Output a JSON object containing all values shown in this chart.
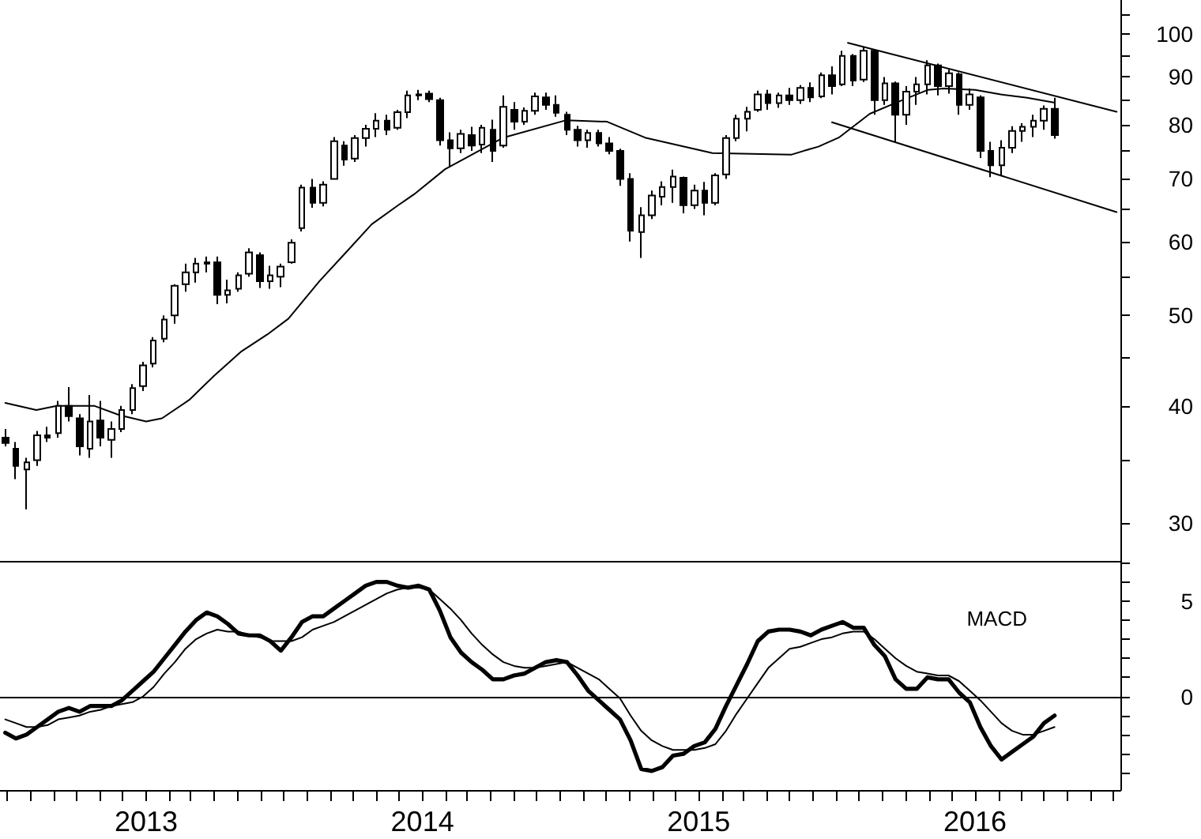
{
  "chart_data": [
    {
      "type": "candlestick",
      "color": "#000000",
      "log": true,
      "tick_labels": "y",
      "xlim": [
        "2012-06-22",
        "2016-07-11"
      ],
      "ylim": [
        27.3,
        108.8
      ],
      "yticks": [
        30,
        {
          "value": 35,
          "label": null
        },
        40,
        {
          "value": 45,
          "label": null
        },
        50,
        {
          "value": 55,
          "label": null
        },
        60,
        {
          "value": 65,
          "label": null
        },
        70,
        {
          "value": 75,
          "label": null
        },
        80,
        {
          "value": 85,
          "label": null
        },
        90,
        {
          "value": 95,
          "label": null
        },
        100,
        {
          "value": 105,
          "label": null
        }
      ],
      "x": [
        "2012-06-29",
        "2012-07-13",
        "2012-07-27",
        "2012-08-10",
        "2012-08-24",
        "2012-09-07",
        "2012-09-21",
        "2012-10-05",
        "2012-10-19",
        "2012-11-02",
        "2012-11-16",
        "2012-11-30",
        "2012-12-14",
        "2012-12-28",
        "2013-01-11",
        "2013-01-25",
        "2013-02-08",
        "2013-02-22",
        "2013-03-08",
        "2013-03-22",
        "2013-04-05",
        "2013-04-19",
        "2013-05-03",
        "2013-05-17",
        "2013-05-31",
        "2013-06-14",
        "2013-06-28",
        "2013-07-12",
        "2013-07-26",
        "2013-08-09",
        "2013-08-23",
        "2013-09-06",
        "2013-09-20",
        "2013-10-04",
        "2013-10-18",
        "2013-11-01",
        "2013-11-15",
        "2013-11-29",
        "2013-12-13",
        "2013-12-27",
        "2014-01-10",
        "2014-01-24",
        "2014-02-07",
        "2014-02-21",
        "2014-03-07",
        "2014-03-21",
        "2014-04-04",
        "2014-04-18",
        "2014-05-02",
        "2014-05-16",
        "2014-05-30",
        "2014-06-13",
        "2014-06-27",
        "2014-07-11",
        "2014-07-25",
        "2014-08-08",
        "2014-08-22",
        "2014-09-05",
        "2014-09-19",
        "2014-10-03",
        "2014-10-17",
        "2014-10-31",
        "2014-11-14",
        "2014-11-28",
        "2014-12-12",
        "2014-12-26",
        "2015-01-09",
        "2015-01-23",
        "2015-02-06",
        "2015-02-20",
        "2015-03-06",
        "2015-03-20",
        "2015-04-03",
        "2015-04-17",
        "2015-05-01",
        "2015-05-15",
        "2015-05-29",
        "2015-06-12",
        "2015-06-26",
        "2015-07-10",
        "2015-07-24",
        "2015-08-07",
        "2015-08-21",
        "2015-09-04",
        "2015-09-18",
        "2015-10-02",
        "2015-10-16",
        "2015-10-30",
        "2015-11-13",
        "2015-11-27",
        "2015-12-11",
        "2015-12-25",
        "2016-01-08",
        "2016-01-22",
        "2016-02-05",
        "2016-02-19",
        "2016-03-04",
        "2016-03-18",
        "2016-04-01",
        "2016-04-15"
      ],
      "ohlc": [
        [
          37.0,
          37.8,
          36.2,
          36.5
        ],
        [
          36.0,
          36.6,
          33.4,
          34.5
        ],
        [
          34.2,
          35.2,
          31.0,
          34.8
        ],
        [
          35.0,
          37.6,
          34.5,
          37.2
        ],
        [
          37.2,
          38.0,
          36.6,
          37.0
        ],
        [
          37.4,
          40.5,
          37.0,
          40.0
        ],
        [
          40.0,
          41.9,
          38.5,
          39.0
        ],
        [
          38.8,
          39.2,
          35.4,
          36.2
        ],
        [
          36.0,
          41.1,
          35.2,
          38.5
        ],
        [
          38.6,
          40.5,
          36.2,
          37.0
        ],
        [
          36.8,
          38.5,
          35.2,
          37.8
        ],
        [
          37.8,
          40.0,
          37.5,
          39.6
        ],
        [
          39.6,
          42.2,
          39.2,
          41.8
        ],
        [
          42.0,
          44.6,
          41.5,
          44.2
        ],
        [
          44.4,
          47.4,
          44.0,
          47.0
        ],
        [
          47.2,
          50.0,
          46.8,
          49.5
        ],
        [
          50.0,
          54.0,
          49.0,
          53.8
        ],
        [
          54.0,
          56.8,
          53.0,
          55.6
        ],
        [
          55.6,
          57.6,
          54.2,
          56.8
        ],
        [
          56.8,
          57.8,
          55.6,
          57.0
        ],
        [
          57.0,
          57.8,
          51.4,
          52.6
        ],
        [
          52.6,
          54.6,
          51.5,
          53.2
        ],
        [
          53.4,
          55.6,
          53.0,
          55.2
        ],
        [
          55.4,
          59.0,
          55.0,
          58.4
        ],
        [
          58.0,
          58.4,
          53.5,
          54.4
        ],
        [
          54.4,
          56.5,
          53.4,
          55.2
        ],
        [
          55.0,
          56.8,
          53.6,
          56.4
        ],
        [
          57.0,
          60.3,
          56.8,
          59.8
        ],
        [
          62.0,
          69.0,
          61.5,
          68.5
        ],
        [
          68.5,
          70.0,
          65.2,
          66.0
        ],
        [
          66.0,
          69.6,
          65.4,
          69.0
        ],
        [
          70.0,
          77.6,
          69.9,
          76.8
        ],
        [
          76.0,
          76.8,
          72.3,
          73.4
        ],
        [
          73.6,
          78.0,
          73.0,
          77.4
        ],
        [
          77.4,
          80.0,
          75.8,
          79.2
        ],
        [
          79.2,
          82.3,
          77.6,
          80.8
        ],
        [
          80.8,
          82.0,
          78.0,
          79.0
        ],
        [
          79.4,
          83.0,
          79.0,
          82.5
        ],
        [
          82.5,
          87.0,
          81.3,
          86.0
        ],
        [
          86.0,
          87.2,
          85.0,
          86.2
        ],
        [
          86.4,
          87.0,
          84.6,
          85.2
        ],
        [
          85.0,
          85.5,
          76.0,
          77.0
        ],
        [
          77.0,
          78.5,
          72.0,
          75.5
        ],
        [
          75.5,
          79.0,
          74.6,
          78.2
        ],
        [
          78.0,
          79.6,
          75.0,
          76.0
        ],
        [
          76.2,
          80.0,
          74.6,
          79.4
        ],
        [
          79.0,
          81.0,
          73.0,
          75.0
        ],
        [
          76.0,
          86.0,
          75.6,
          83.6
        ],
        [
          83.0,
          84.6,
          79.0,
          80.6
        ],
        [
          80.6,
          83.5,
          80.0,
          82.8
        ],
        [
          82.8,
          86.6,
          82.0,
          85.8
        ],
        [
          85.6,
          86.6,
          83.0,
          84.0
        ],
        [
          84.0,
          86.0,
          81.6,
          82.4
        ],
        [
          82.0,
          82.6,
          78.0,
          79.0
        ],
        [
          79.0,
          79.8,
          75.8,
          77.0
        ],
        [
          77.0,
          79.0,
          75.6,
          78.4
        ],
        [
          78.4,
          79.0,
          75.8,
          76.4
        ],
        [
          76.4,
          77.6,
          74.4,
          75.0
        ],
        [
          75.0,
          75.4,
          68.8,
          70.0
        ],
        [
          70.0,
          71.0,
          60.0,
          61.6
        ],
        [
          61.4,
          65.3,
          57.6,
          64.0
        ],
        [
          64.0,
          68.0,
          63.4,
          67.2
        ],
        [
          67.0,
          69.6,
          65.6,
          68.6
        ],
        [
          68.6,
          71.6,
          66.0,
          70.4
        ],
        [
          70.2,
          70.4,
          64.3,
          65.6
        ],
        [
          65.6,
          69.0,
          65.0,
          68.0
        ],
        [
          68.0,
          69.5,
          64.0,
          66.0
        ],
        [
          66.0,
          71.0,
          65.6,
          70.6
        ],
        [
          70.8,
          78.0,
          70.0,
          77.4
        ],
        [
          77.4,
          82.0,
          76.8,
          81.2
        ],
        [
          81.2,
          83.6,
          78.7,
          82.6
        ],
        [
          83.0,
          87.0,
          82.6,
          86.2
        ],
        [
          86.2,
          87.2,
          83.0,
          84.4
        ],
        [
          84.4,
          86.6,
          83.4,
          86.0
        ],
        [
          86.0,
          87.6,
          84.0,
          85.0
        ],
        [
          85.0,
          88.2,
          84.2,
          87.6
        ],
        [
          87.6,
          88.8,
          84.6,
          85.6
        ],
        [
          85.8,
          91.0,
          85.4,
          90.4
        ],
        [
          90.4,
          92.4,
          86.2,
          88.0
        ],
        [
          88.4,
          96.0,
          88.0,
          94.8
        ],
        [
          94.8,
          95.2,
          88.0,
          89.2
        ],
        [
          89.4,
          97.0,
          88.9,
          96.0
        ],
        [
          96.0,
          96.4,
          82.0,
          85.0
        ],
        [
          85.0,
          90.0,
          84.0,
          88.6
        ],
        [
          88.6,
          89.0,
          76.7,
          82.0
        ],
        [
          82.0,
          88.0,
          80.0,
          86.8
        ],
        [
          86.8,
          90.0,
          84.0,
          88.4
        ],
        [
          88.4,
          93.8,
          86.2,
          92.6
        ],
        [
          92.6,
          93.0,
          86.0,
          88.0
        ],
        [
          88.0,
          91.6,
          86.4,
          90.8
        ],
        [
          90.6,
          91.0,
          82.0,
          84.0
        ],
        [
          84.0,
          87.5,
          83.0,
          86.2
        ],
        [
          85.6,
          86.0,
          73.7,
          75.0
        ],
        [
          75.0,
          76.7,
          70.3,
          72.4
        ],
        [
          72.4,
          77.0,
          70.5,
          75.6
        ],
        [
          75.6,
          79.7,
          74.6,
          78.8
        ],
        [
          78.8,
          80.3,
          76.7,
          79.6
        ],
        [
          79.6,
          82.0,
          77.6,
          80.8
        ],
        [
          80.8,
          83.9,
          79.0,
          83.2
        ],
        [
          83.2,
          85.5,
          77.3,
          78.0
        ]
      ],
      "series": [
        {
          "type": "line",
          "color": "#000000",
          "x": [
            "2012-06-29",
            "2012-08-09",
            "2012-09-05",
            "2012-10-25",
            "2012-11-27",
            "2013-01-01",
            "2013-01-22",
            "2013-02-27",
            "2013-04-01",
            "2013-05-06",
            "2013-06-10",
            "2013-07-08",
            "2013-08-18",
            "2013-09-22",
            "2013-10-26",
            "2013-11-30",
            "2013-12-21",
            "2014-01-31",
            "2014-04-18",
            "2014-07-10",
            "2014-09-02",
            "2014-10-22",
            "2015-01-19",
            "2015-05-03",
            "2015-05-24",
            "2015-06-08",
            "2015-07-05",
            "2015-08-15",
            "2015-09-19",
            "2015-10-31",
            "2015-11-21",
            "2016-01-01",
            "2016-02-04",
            "2016-03-10",
            "2016-04-14"
          ],
          "values": [
            40.3,
            39.6,
            40.0,
            40.0,
            39.1,
            38.5,
            38.8,
            40.6,
            43.1,
            45.7,
            47.7,
            49.6,
            54.4,
            58.4,
            62.6,
            65.6,
            67.4,
            71.7,
            77.5,
            80.9,
            80.6,
            77.5,
            74.6,
            74.3,
            75.2,
            75.8,
            77.5,
            82.2,
            84.5,
            87.2,
            87.5,
            87.2,
            86.2,
            85.5,
            84.5
          ]
        },
        {
          "type": "line",
          "color": "#000000",
          "x": [
            "2015-07-17",
            "2016-07-06"
          ],
          "values": [
            97.9,
            82.6
          ]
        },
        {
          "type": "line",
          "color": "#000000",
          "x": [
            "2015-06-26",
            "2016-07-06"
          ],
          "values": [
            80.5,
            64.5
          ]
        }
      ]
    },
    {
      "type": "line",
      "xlim": [
        "2012-06-22",
        "2016-07-11"
      ],
      "ylim": [
        -4.9,
        7.1
      ],
      "yticks": [
        {
          "value": -4,
          "label": null
        },
        {
          "value": -3,
          "label": null
        },
        {
          "value": -2,
          "label": null
        },
        {
          "value": -1,
          "label": null
        },
        0,
        {
          "value": 1,
          "label": null
        },
        {
          "value": 2,
          "label": null
        },
        {
          "value": 3,
          "label": null
        },
        {
          "value": 4,
          "label": null
        },
        5,
        {
          "value": 6,
          "label": null
        },
        {
          "value": 7,
          "label": null
        }
      ],
      "xticks": [
        {
          "value": "2012-07",
          "label": null
        },
        {
          "value": "2012-08",
          "label": null
        },
        {
          "value": "2012-09",
          "label": null
        },
        {
          "value": "2012-10",
          "label": null
        },
        {
          "value": "2012-11",
          "label": null
        },
        {
          "value": "2012-12",
          "label": null
        },
        {
          "value": "2013-01",
          "label": "2013"
        },
        {
          "value": "2013-02",
          "label": null
        },
        {
          "value": "2013-03",
          "label": null
        },
        {
          "value": "2013-04",
          "label": null
        },
        {
          "value": "2013-05",
          "label": null
        },
        {
          "value": "2013-06",
          "label": null
        },
        {
          "value": "2013-07",
          "label": null
        },
        {
          "value": "2013-08",
          "label": null
        },
        {
          "value": "2013-09",
          "label": null
        },
        {
          "value": "2013-10",
          "label": null
        },
        {
          "value": "2013-11",
          "label": null
        },
        {
          "value": "2013-12",
          "label": null
        },
        {
          "value": "2014-01",
          "label": "2014"
        },
        {
          "value": "2014-02",
          "label": null
        },
        {
          "value": "2014-03",
          "label": null
        },
        {
          "value": "2014-04",
          "label": null
        },
        {
          "value": "2014-05",
          "label": null
        },
        {
          "value": "2014-06",
          "label": null
        },
        {
          "value": "2014-07",
          "label": null
        },
        {
          "value": "2014-08",
          "label": null
        },
        {
          "value": "2014-09",
          "label": null
        },
        {
          "value": "2014-10",
          "label": null
        },
        {
          "value": "2014-11",
          "label": null
        },
        {
          "value": "2014-12",
          "label": null
        },
        {
          "value": "2015-01",
          "label": "2015"
        },
        {
          "value": "2015-02",
          "label": null
        },
        {
          "value": "2015-03",
          "label": null
        },
        {
          "value": "2015-04",
          "label": null
        },
        {
          "value": "2015-05",
          "label": null
        },
        {
          "value": "2015-06",
          "label": null
        },
        {
          "value": "2015-07",
          "label": null
        },
        {
          "value": "2015-08",
          "label": null
        },
        {
          "value": "2015-09",
          "label": null
        },
        {
          "value": "2015-10",
          "label": null
        },
        {
          "value": "2015-11",
          "label": null
        },
        {
          "value": "2015-12",
          "label": null
        },
        {
          "value": "2016-01",
          "label": "2016"
        },
        {
          "value": "2016-02",
          "label": null
        },
        {
          "value": "2016-03",
          "label": null
        },
        {
          "value": "2016-04",
          "label": null
        },
        {
          "value": "2016-05",
          "label": null
        },
        {
          "value": "2016-06",
          "label": null
        },
        {
          "value": "2016-07",
          "label": null
        }
      ],
      "x": [
        "2012-06-29",
        "2012-07-13",
        "2012-07-27",
        "2012-08-10",
        "2012-08-24",
        "2012-09-07",
        "2012-09-21",
        "2012-10-05",
        "2012-10-19",
        "2012-11-02",
        "2012-11-16",
        "2012-11-30",
        "2012-12-14",
        "2012-12-28",
        "2013-01-11",
        "2013-01-25",
        "2013-02-08",
        "2013-02-22",
        "2013-03-08",
        "2013-03-22",
        "2013-04-05",
        "2013-04-19",
        "2013-05-03",
        "2013-05-17",
        "2013-05-31",
        "2013-06-14",
        "2013-06-28",
        "2013-07-12",
        "2013-07-26",
        "2013-08-09",
        "2013-08-23",
        "2013-09-06",
        "2013-09-20",
        "2013-10-04",
        "2013-10-18",
        "2013-11-01",
        "2013-11-15",
        "2013-11-29",
        "2013-12-13",
        "2013-12-27",
        "2014-01-10",
        "2014-01-24",
        "2014-02-07",
        "2014-02-21",
        "2014-03-07",
        "2014-03-21",
        "2014-04-04",
        "2014-04-18",
        "2014-05-02",
        "2014-05-16",
        "2014-05-30",
        "2014-06-13",
        "2014-06-27",
        "2014-07-11",
        "2014-07-25",
        "2014-08-08",
        "2014-08-22",
        "2014-09-05",
        "2014-09-19",
        "2014-10-03",
        "2014-10-17",
        "2014-10-31",
        "2014-11-14",
        "2014-11-28",
        "2014-12-12",
        "2014-12-26",
        "2015-01-09",
        "2015-01-23",
        "2015-02-06",
        "2015-02-20",
        "2015-03-06",
        "2015-03-20",
        "2015-04-03",
        "2015-04-17",
        "2015-05-01",
        "2015-05-15",
        "2015-05-29",
        "2015-06-12",
        "2015-06-26",
        "2015-07-10",
        "2015-07-24",
        "2015-08-07",
        "2015-08-21",
        "2015-09-04",
        "2015-09-18",
        "2015-10-02",
        "2015-10-16",
        "2015-10-30",
        "2015-11-13",
        "2015-11-27",
        "2015-12-11",
        "2015-12-25",
        "2016-01-08",
        "2016-01-22",
        "2016-02-05",
        "2016-02-19",
        "2016-03-04",
        "2016-03-18",
        "2016-04-01",
        "2016-04-15"
      ],
      "series": [
        {
          "color": "#000000",
          "values": [
            -1.9,
            -2.2,
            -2.0,
            -1.6,
            -1.2,
            -0.8,
            -0.6,
            -0.8,
            -0.5,
            -0.5,
            -0.5,
            -0.2,
            0.3,
            0.8,
            1.3,
            2.0,
            2.7,
            3.4,
            4.0,
            4.4,
            4.2,
            3.8,
            3.3,
            3.2,
            3.2,
            2.9,
            2.4,
            3.1,
            3.9,
            4.2,
            4.2,
            4.6,
            5.0,
            5.4,
            5.8,
            6.0,
            6.0,
            5.8,
            5.7,
            5.8,
            5.6,
            4.5,
            3.1,
            2.3,
            1.8,
            1.4,
            0.9,
            0.9,
            1.1,
            1.2,
            1.5,
            1.8,
            1.9,
            1.8,
            1.1,
            0.3,
            -0.2,
            -0.7,
            -1.2,
            -2.3,
            -3.8,
            -3.9,
            -3.7,
            -3.1,
            -3.0,
            -2.6,
            -2.4,
            -1.7,
            -0.5,
            0.6,
            1.7,
            2.9,
            3.4,
            3.5,
            3.5,
            3.4,
            3.2,
            3.5,
            3.7,
            3.9,
            3.6,
            3.6,
            2.7,
            2.1,
            0.9,
            0.4,
            0.4,
            1.0,
            0.9,
            0.9,
            0.2,
            -0.3,
            -1.6,
            -2.6,
            -3.3,
            -2.9,
            -2.5,
            -2.1,
            -1.4,
            -1.0
          ]
        },
        {
          "color": "#000000",
          "values": [
            -1.2,
            -1.4,
            -1.6,
            -1.6,
            -1.5,
            -1.2,
            -1.1,
            -1.0,
            -0.8,
            -0.7,
            -0.5,
            -0.4,
            -0.3,
            0.0,
            0.5,
            1.2,
            1.8,
            2.5,
            3.0,
            3.3,
            3.5,
            3.4,
            3.4,
            3.2,
            3.1,
            2.9,
            2.9,
            2.9,
            3.1,
            3.5,
            3.7,
            3.9,
            4.2,
            4.5,
            4.8,
            5.1,
            5.4,
            5.6,
            5.7,
            5.7,
            5.6,
            5.1,
            4.6,
            4.0,
            3.3,
            2.7,
            2.2,
            1.8,
            1.6,
            1.5,
            1.5,
            1.6,
            1.7,
            1.8,
            1.5,
            1.2,
            0.9,
            0.4,
            -0.1,
            -1.0,
            -1.8,
            -2.3,
            -2.6,
            -2.8,
            -2.8,
            -2.8,
            -2.7,
            -2.5,
            -1.8,
            -0.9,
            -0.1,
            0.7,
            1.5,
            2.0,
            2.5,
            2.6,
            2.8,
            3.0,
            3.1,
            3.3,
            3.4,
            3.4,
            3.0,
            2.5,
            2.0,
            1.6,
            1.3,
            1.2,
            1.1,
            1.1,
            0.8,
            0.3,
            -0.2,
            -0.8,
            -1.4,
            -1.8,
            -2.0,
            -2.0,
            -1.8,
            -1.6
          ]
        }
      ],
      "ref_lines": [
        {
          "axis": "y",
          "value": 0,
          "color": "#000000"
        }
      ],
      "annotations": [
        "MACD"
      ]
    }
  ]
}
